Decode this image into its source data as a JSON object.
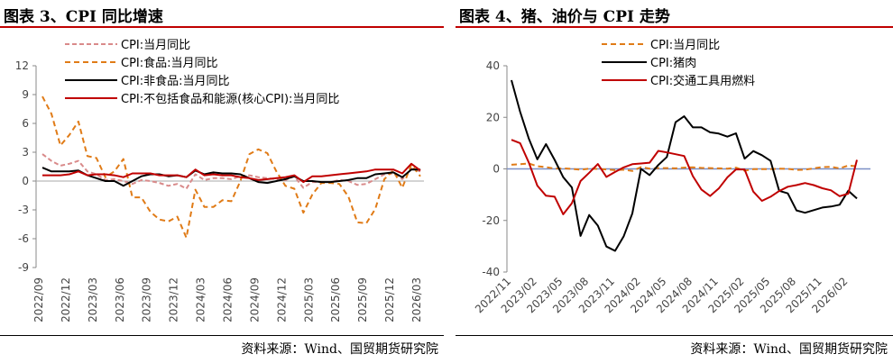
{
  "left": {
    "title": "图表 3、CPI 同比增速",
    "source": "资料来源：Wind、国贸期货研究院",
    "chart_data": {
      "type": "line",
      "ylim": [
        -9,
        12
      ],
      "yticks": [
        12,
        9,
        6,
        3,
        0,
        -3,
        -6,
        -9
      ],
      "x": [
        "2022/09",
        "2022/10",
        "2022/11",
        "2022/12",
        "2023/01",
        "2023/02",
        "2023/03",
        "2023/04",
        "2023/05",
        "2023/06",
        "2023/07",
        "2023/08",
        "2023/09",
        "2023/10",
        "2023/11",
        "2023/12",
        "2024/01",
        "2024/02",
        "2024/03",
        "2024/04",
        "2024/05",
        "2024/06",
        "2024/07",
        "2024/08",
        "2024/09",
        "2024/10",
        "2024/11",
        "2024/12",
        "2025/01",
        "2025/02",
        "2025/03",
        "2025/04",
        "2025/05",
        "2025/06",
        "2025/07",
        "2025/08",
        "2025/09",
        "2025/10",
        "2025/11",
        "2025/12",
        "2026/01",
        "2026/02",
        "2026/03"
      ],
      "xtick_labels": [
        "2022/09",
        "2022/12",
        "2023/03",
        "2023/06",
        "2023/09",
        "2023/12",
        "2024/03",
        "2024/06",
        "2024/09",
        "2024/12",
        "2025/03",
        "2025/06",
        "2025/09",
        "2025/12",
        "2026/03"
      ],
      "grid": false,
      "legend_position": "top-left",
      "series": [
        {
          "name": "CPI:当月同比",
          "color": "#d98a8a",
          "dash": "5,3",
          "width": 2,
          "values": [
            2.8,
            2.1,
            1.6,
            1.8,
            2.1,
            1.0,
            0.7,
            0.1,
            0.2,
            0.0,
            -0.3,
            0.1,
            0.0,
            -0.2,
            -0.5,
            -0.3,
            -0.8,
            0.7,
            0.1,
            0.3,
            0.3,
            0.2,
            0.5,
            0.6,
            0.4,
            0.3,
            0.2,
            0.1,
            0.5,
            -0.7,
            -0.1,
            -0.1,
            -0.1,
            0.1,
            0.0,
            -0.4,
            -0.3,
            0.2,
            0.7,
            0.8,
            0.2,
            1.3,
            1.0
          ]
        },
        {
          "name": "CPI:食品:当月同比",
          "color": "#e07b17",
          "dash": "6,4",
          "width": 2,
          "values": [
            8.8,
            7.0,
            3.7,
            4.8,
            6.2,
            2.6,
            2.4,
            0.4,
            1.0,
            2.3,
            -1.7,
            -1.7,
            -3.2,
            -4.0,
            -4.2,
            -3.7,
            -5.9,
            -0.9,
            -2.7,
            -2.7,
            -2.0,
            -2.1,
            0.0,
            2.8,
            3.3,
            2.9,
            1.0,
            -0.5,
            -0.8,
            -3.3,
            -1.4,
            -0.2,
            -0.2,
            -0.3,
            -1.6,
            -4.3,
            -4.4,
            -2.9,
            0.2,
            1.1,
            -0.7,
            1.7,
            0.5
          ]
        },
        {
          "name": "CPI:非食品:当月同比",
          "color": "#000000",
          "dash": "",
          "width": 2,
          "values": [
            1.4,
            1.0,
            1.0,
            1.0,
            1.1,
            0.6,
            0.3,
            0.0,
            0.0,
            -0.5,
            0.0,
            0.5,
            0.7,
            0.7,
            0.5,
            0.6,
            0.4,
            1.1,
            0.7,
            0.9,
            0.8,
            0.8,
            0.7,
            0.3,
            -0.1,
            -0.2,
            0.0,
            0.2,
            0.5,
            0.0,
            0.0,
            -0.1,
            -0.1,
            0.0,
            0.1,
            0.3,
            0.3,
            0.7,
            0.8,
            0.9,
            0.4,
            1.2,
            1.2
          ]
        },
        {
          "name": "CPI:不包括食品和能源(核心CPI):当月同比",
          "color": "#c00000",
          "dash": "",
          "width": 2,
          "values": [
            0.6,
            0.6,
            0.6,
            0.7,
            1.0,
            0.6,
            0.7,
            0.7,
            0.6,
            0.4,
            0.8,
            0.8,
            0.8,
            0.6,
            0.6,
            0.6,
            0.4,
            1.2,
            0.6,
            0.7,
            0.6,
            0.6,
            0.4,
            0.3,
            0.1,
            0.2,
            0.3,
            0.4,
            0.6,
            -0.1,
            0.5,
            0.5,
            0.6,
            0.7,
            0.8,
            0.9,
            1.0,
            1.2,
            1.2,
            1.2,
            0.8,
            1.8,
            1.1
          ]
        }
      ]
    }
  },
  "right": {
    "title": "图表 4、猪、油价与 CPI 走势",
    "source": "资料来源：Wind、国贸期货研究院",
    "chart_data": {
      "type": "line",
      "ylim": [
        -40,
        40
      ],
      "yticks": [
        40,
        20,
        0,
        -20,
        -40
      ],
      "x": [
        "2022/11",
        "2022/12",
        "2023/01",
        "2023/02",
        "2023/03",
        "2023/04",
        "2023/05",
        "2023/06",
        "2023/07",
        "2023/08",
        "2023/09",
        "2023/10",
        "2023/11",
        "2023/12",
        "2024/01",
        "2024/02",
        "2024/03",
        "2024/04",
        "2024/05",
        "2024/06",
        "2024/07",
        "2024/08",
        "2024/09",
        "2024/10",
        "2024/11",
        "2024/12",
        "2025/01",
        "2025/02",
        "2025/03",
        "2025/04",
        "2025/05",
        "2025/06",
        "2025/07",
        "2025/08",
        "2025/09",
        "2025/10",
        "2025/11",
        "2025/12",
        "2026/01",
        "2026/02",
        "2026/03"
      ],
      "xtick_labels": [
        "2022/11",
        "2023/02",
        "2023/05",
        "2023/08",
        "2023/11",
        "2024/02",
        "2024/05",
        "2024/08",
        "2024/11",
        "2025/02",
        "2025/05",
        "2025/08",
        "2025/11",
        "2026/02"
      ],
      "grid": false,
      "legend_position": "top-right",
      "series": [
        {
          "name": "CPI:当月同比",
          "color": "#e07b17",
          "dash": "6,4",
          "width": 2,
          "values": [
            1.6,
            1.8,
            2.1,
            1.0,
            0.7,
            0.1,
            0.2,
            0.0,
            -0.3,
            0.1,
            0.0,
            -0.2,
            -0.5,
            -0.3,
            -0.8,
            0.7,
            0.1,
            0.3,
            0.3,
            0.2,
            0.5,
            0.6,
            0.4,
            0.3,
            0.2,
            0.1,
            0.5,
            -0.7,
            -0.1,
            -0.1,
            -0.1,
            0.1,
            0.0,
            -0.4,
            -0.3,
            0.2,
            0.7,
            0.8,
            0.2,
            1.3,
            1.0
          ]
        },
        {
          "name": "CPI:猪肉",
          "color": "#000000",
          "dash": "",
          "width": 2,
          "values": [
            34.4,
            22.2,
            11.8,
            3.7,
            9.6,
            3.5,
            -3.2,
            -7.2,
            -26.0,
            -17.9,
            -22.0,
            -30.1,
            -31.8,
            -26.1,
            -17.3,
            0.0,
            -2.4,
            1.5,
            4.6,
            18.1,
            20.4,
            16.1,
            16.1,
            14.2,
            13.7,
            12.5,
            13.8,
            4.0,
            6.9,
            5.3,
            3.1,
            -8.5,
            -9.5,
            -16.1,
            -17.0,
            -16.0,
            -15.0,
            -14.6,
            -13.9,
            -8.5,
            -11.5
          ]
        },
        {
          "name": "CPI:交通工具用燃料",
          "color": "#c00000",
          "dash": "",
          "width": 2,
          "values": [
            11.3,
            10.0,
            2.5,
            -6.5,
            -10.4,
            -10.8,
            -17.6,
            -13.3,
            -4.7,
            -1.5,
            1.9,
            -3.1,
            -1.2,
            0.6,
            1.8,
            2.1,
            2.4,
            7.0,
            6.4,
            5.7,
            5.0,
            -2.8,
            -8.0,
            -10.5,
            -7.6,
            -3.3,
            -0.2,
            -0.2,
            -8.8,
            -12.4,
            -10.8,
            -8.6,
            -6.9,
            -6.3,
            -5.5,
            -6.3,
            -7.5,
            -8.3,
            -10.6,
            -9.6,
            3.5
          ]
        }
      ]
    }
  }
}
